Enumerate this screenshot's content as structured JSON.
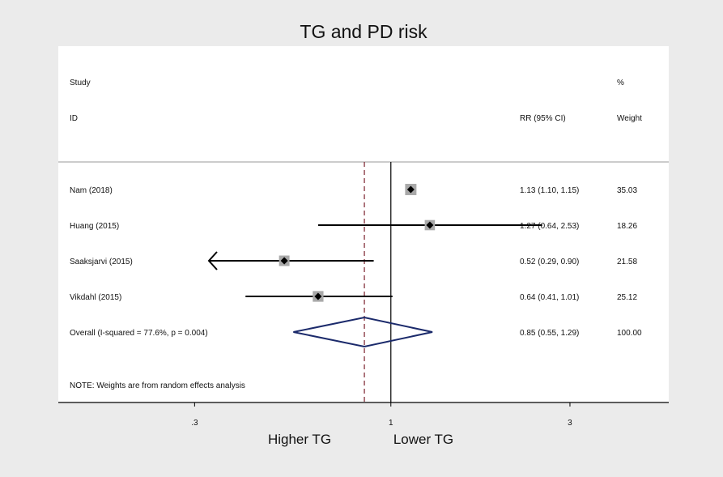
{
  "chart_data": {
    "type": "forest",
    "title": "TG and PD risk",
    "header": {
      "study_line1": "Study",
      "study_line2": "ID",
      "ci_label": "RR (95% CI)",
      "weight_line1": "%",
      "weight_line2": "Weight"
    },
    "studies": [
      {
        "label": "Nam (2018)",
        "rr": 1.13,
        "lo": 1.1,
        "hi": 1.15,
        "ci_text": "1.13 (1.10, 1.15)",
        "weight": "35.03",
        "weight_value": 35.03
      },
      {
        "label": "Huang  (2015)",
        "rr": 1.27,
        "lo": 0.64,
        "hi": 2.53,
        "ci_text": "1.27 (0.64, 2.53)",
        "weight": "18.26",
        "weight_value": 18.26
      },
      {
        "label": "Saaksjarvi   (2015)",
        "rr": 0.52,
        "lo": 0.29,
        "hi": 0.9,
        "ci_text": "0.52 (0.29, 0.90)",
        "weight": "21.58",
        "weight_value": 21.58,
        "lower_truncated": true
      },
      {
        "label": "Vikdahl   (2015)",
        "rr": 0.64,
        "lo": 0.41,
        "hi": 1.01,
        "ci_text": "0.64 (0.41, 1.01)",
        "weight": "25.12",
        "weight_value": 25.12
      }
    ],
    "overall": {
      "label": "Overall  (I-squared = 77.6%, p = 0.004)",
      "rr": 0.85,
      "lo": 0.55,
      "hi": 1.29,
      "ci_text": "0.85 (0.55, 1.29)",
      "weight": "100.00"
    },
    "note": "NOTE: Weights are from random effects analysis",
    "x_scale": "log",
    "xlim": [
      0.13,
      5.5
    ],
    "null_value": 1,
    "x_ticks": [
      {
        "value": 0.3,
        "label": ".3"
      },
      {
        "value": 1,
        "label": "1"
      },
      {
        "value": 3,
        "label": "3"
      }
    ],
    "xlabel_left": "Higher TG",
    "xlabel_right": "Lower TG",
    "colors": {
      "background": "#ebebeb",
      "plot_region": "#ffffff",
      "line": "#000000",
      "weight_box": "#a9a9a9",
      "diamond": "#1b2a6b",
      "overall_line": "#7a1f2b"
    }
  }
}
